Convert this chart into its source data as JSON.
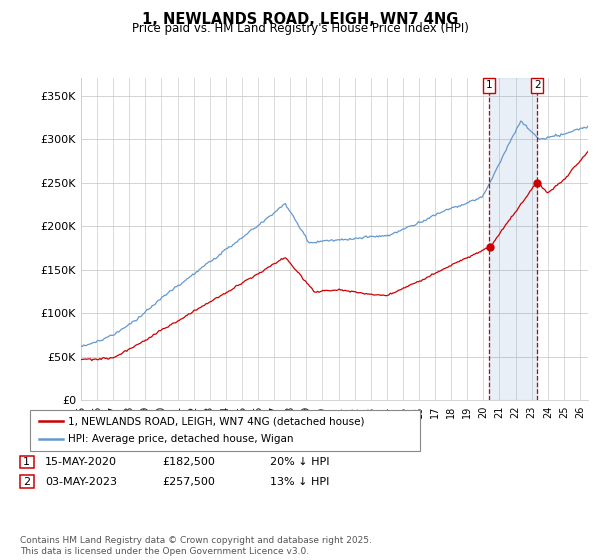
{
  "title": "1, NEWLANDS ROAD, LEIGH, WN7 4NG",
  "subtitle": "Price paid vs. HM Land Registry's House Price Index (HPI)",
  "ylabel_ticks": [
    "£0",
    "£50K",
    "£100K",
    "£150K",
    "£200K",
    "£250K",
    "£300K",
    "£350K"
  ],
  "ylim": [
    0,
    370000
  ],
  "xlim_start": 1995.0,
  "xlim_end": 2026.5,
  "marker1_date": 2020.37,
  "marker2_date": 2023.34,
  "marker1_price": 182500,
  "marker2_price": 257500,
  "marker1_text": "15-MAY-2020",
  "marker2_text": "03-MAY-2023",
  "marker1_pct": "20% ↓ HPI",
  "marker2_pct": "13% ↓ HPI",
  "legend_line1": "1, NEWLANDS ROAD, LEIGH, WN7 4NG (detached house)",
  "legend_line2": "HPI: Average price, detached house, Wigan",
  "footer": "Contains HM Land Registry data © Crown copyright and database right 2025.\nThis data is licensed under the Open Government Licence v3.0.",
  "line_color_red": "#cc0000",
  "line_color_blue": "#6699cc",
  "shade_color": "#ddeeff",
  "background_color": "#ffffff",
  "grid_color": "#cccccc",
  "marker_box_color": "#cc0000"
}
